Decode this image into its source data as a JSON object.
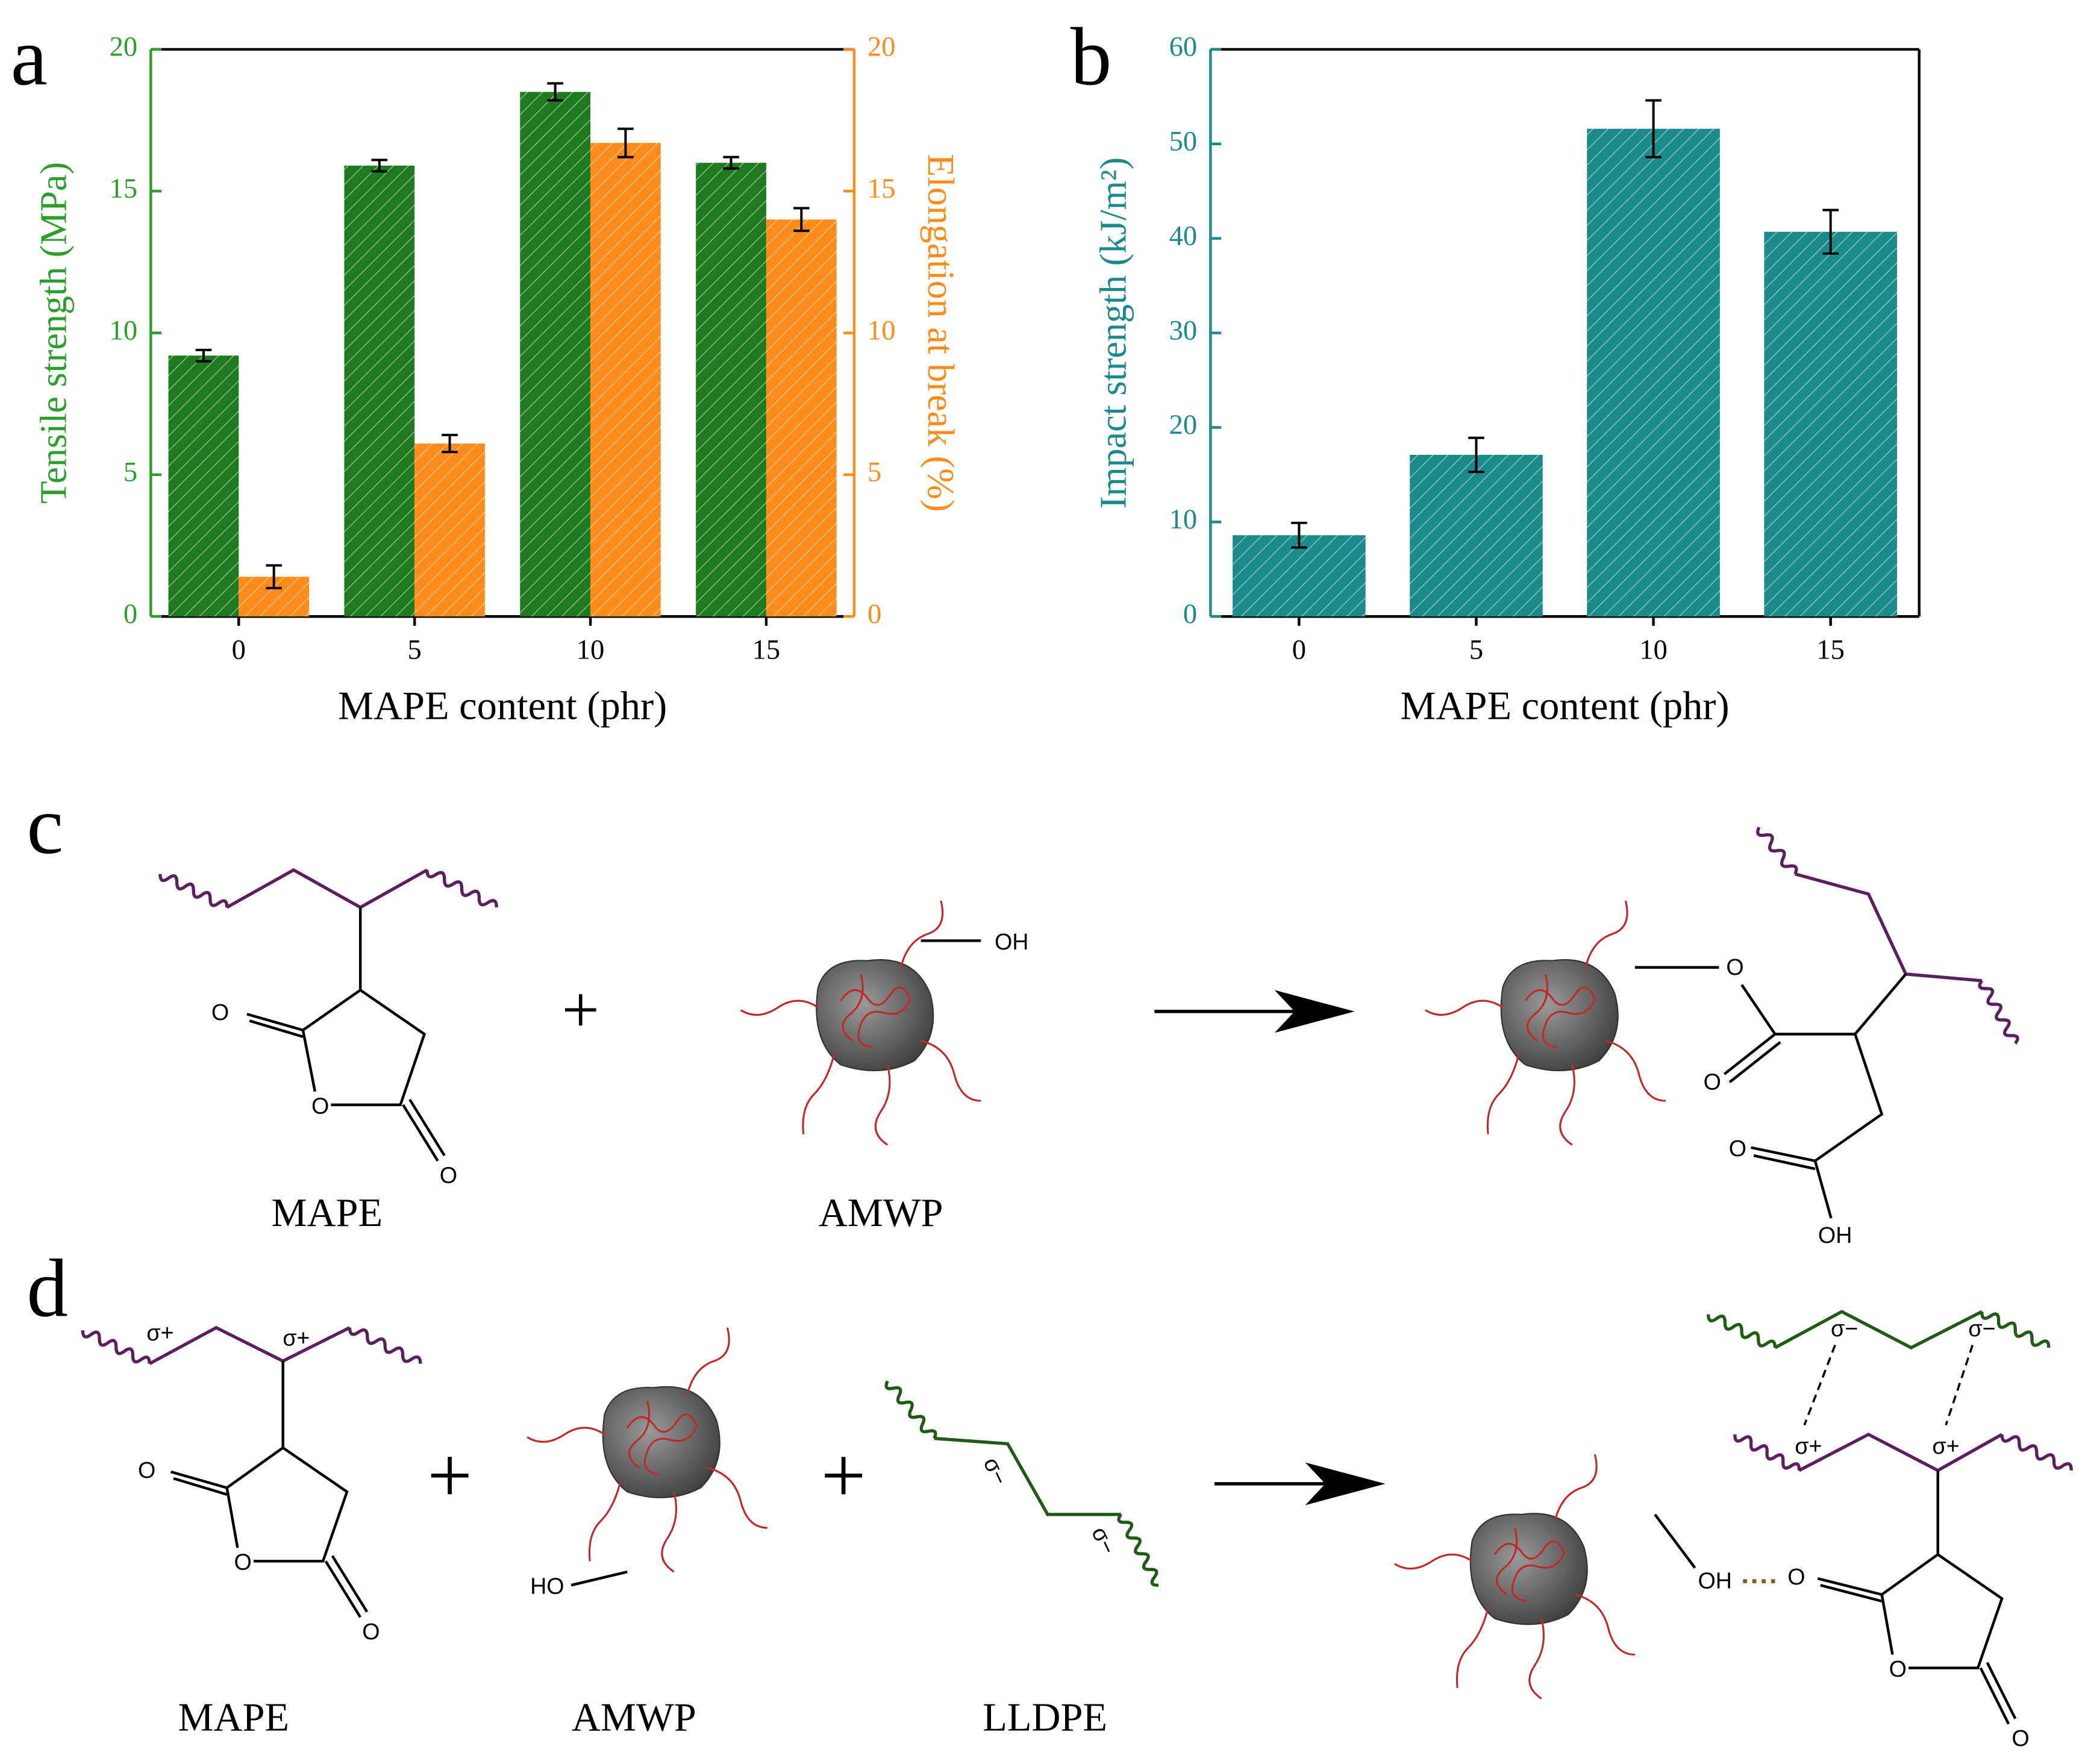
{
  "chart_data": [
    {
      "type": "bar",
      "panel_label": "a",
      "xlabel": "MAPE content (phr)",
      "ylabel": "Tensile strength (MPa)",
      "y2label": "Elongation at break (%)",
      "ycolor": "#2aa02a",
      "y2color": "#ff8c1a",
      "categories": [
        "0",
        "5",
        "10",
        "15"
      ],
      "series": [
        {
          "color": "#1e7a1e",
          "values": [
            9.2,
            15.9,
            18.5,
            16.0
          ],
          "errors": [
            0.2,
            0.2,
            0.3,
            0.2
          ]
        },
        {
          "color": "#ff8c1a",
          "axis": "y2",
          "values": [
            1.4,
            6.1,
            16.7,
            14.0
          ],
          "errors": [
            0.4,
            0.3,
            0.5,
            0.4
          ]
        }
      ],
      "ylim": [
        0,
        20
      ],
      "yticks": [
        0,
        5,
        10,
        15,
        20
      ],
      "y2lim": [
        0,
        20
      ],
      "y2ticks": [
        0,
        5,
        10,
        15,
        20
      ]
    },
    {
      "type": "bar",
      "panel_label": "b",
      "xlabel": "MAPE content (phr)",
      "ylabel": "Impact strength (kJ/m²)",
      "ycolor": "#1a8a8a",
      "categories": [
        "0",
        "5",
        "10",
        "15"
      ],
      "series": [
        {
          "color": "#1a8a8a",
          "values": [
            8.6,
            17.1,
            51.6,
            40.7
          ],
          "errors": [
            1.3,
            1.8,
            3.0,
            2.3
          ]
        }
      ],
      "ylim": [
        0,
        60
      ],
      "yticks": [
        0,
        10,
        20,
        30,
        40,
        50,
        60
      ]
    }
  ],
  "scheme_c": {
    "panel_label": "c",
    "captions": [
      "MAPE",
      "AMWP"
    ],
    "atoms": [
      "O",
      "O",
      "O",
      "OH",
      "O",
      "O",
      "O",
      "OH"
    ],
    "plus": "+"
  },
  "scheme_d": {
    "panel_label": "d",
    "captions": [
      "MAPE",
      "AMWP",
      "LLDPE"
    ],
    "atoms": [
      "O",
      "O",
      "O",
      "HO",
      "OH",
      "O",
      "O",
      "O"
    ],
    "charges": [
      "σ+",
      "σ+",
      "σ−",
      "σ−",
      "σ−",
      "σ−",
      "σ+",
      "σ+"
    ],
    "plus": [
      "+",
      "+"
    ]
  }
}
